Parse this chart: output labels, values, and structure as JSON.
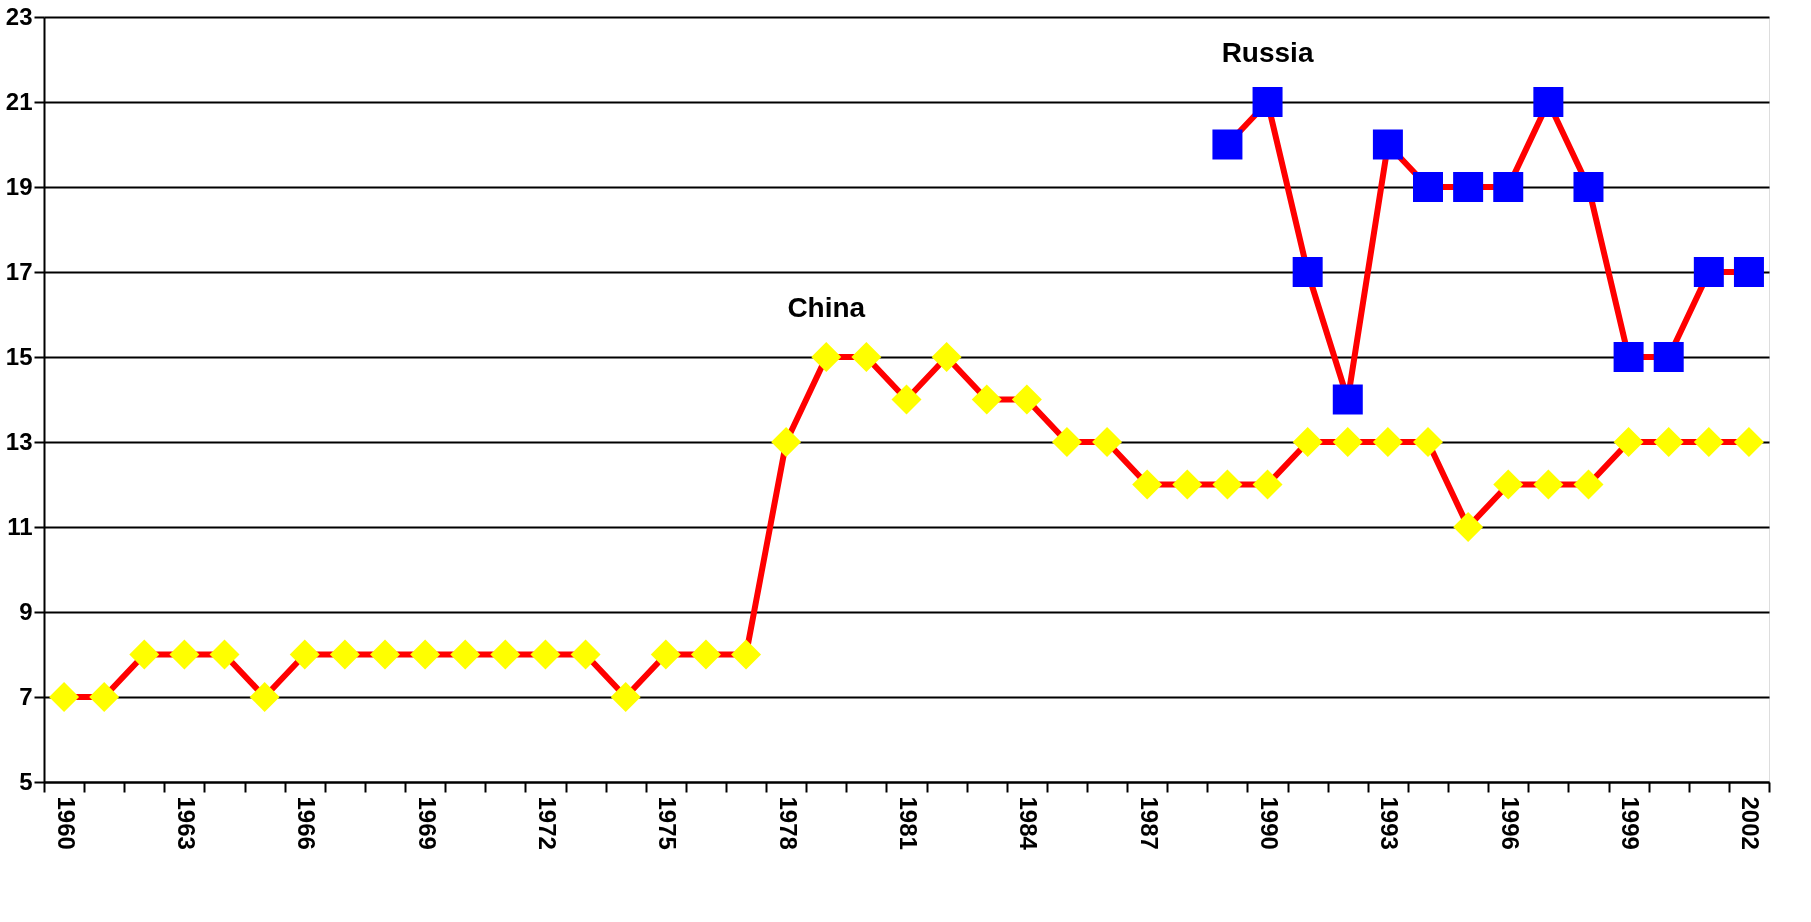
{
  "chart_data": {
    "type": "line",
    "categories": [
      "1960",
      null,
      null,
      "1963",
      null,
      null,
      "1966",
      null,
      null,
      "1969",
      null,
      null,
      "1972",
      null,
      null,
      "1975",
      null,
      null,
      "1978",
      null,
      null,
      "1981",
      null,
      null,
      "1984",
      null,
      null,
      "1987",
      null,
      null,
      "1990",
      null,
      null,
      "1993",
      null,
      null,
      "1996",
      null,
      null,
      "1999",
      null,
      null,
      "2002"
    ],
    "series": [
      {
        "name": "China",
        "color": "#ffff00",
        "marker": "diamond",
        "values": [
          7,
          7,
          8,
          8,
          8,
          7,
          8,
          8,
          8,
          8,
          8,
          8,
          8,
          8,
          7,
          8,
          8,
          8,
          13,
          15,
          15,
          14,
          15,
          14,
          14,
          13,
          13,
          12,
          12,
          12,
          12,
          13,
          13,
          13,
          13,
          11,
          12,
          12,
          12,
          13,
          13,
          13,
          13
        ]
      },
      {
        "name": "Russia",
        "color": "#0000ff",
        "marker": "square",
        "values": [
          null,
          null,
          null,
          null,
          null,
          null,
          null,
          null,
          null,
          null,
          null,
          null,
          null,
          null,
          null,
          null,
          null,
          null,
          null,
          null,
          null,
          null,
          null,
          null,
          null,
          null,
          null,
          null,
          null,
          20,
          21,
          17,
          14,
          20,
          19,
          19,
          19,
          21,
          19,
          15,
          15,
          17,
          17
        ]
      }
    ],
    "ylim": [
      5,
      23
    ],
    "yticks": [
      5,
      7,
      9,
      11,
      13,
      15,
      17,
      19,
      21,
      23
    ],
    "grid": "y",
    "line_style": "solid"
  }
}
